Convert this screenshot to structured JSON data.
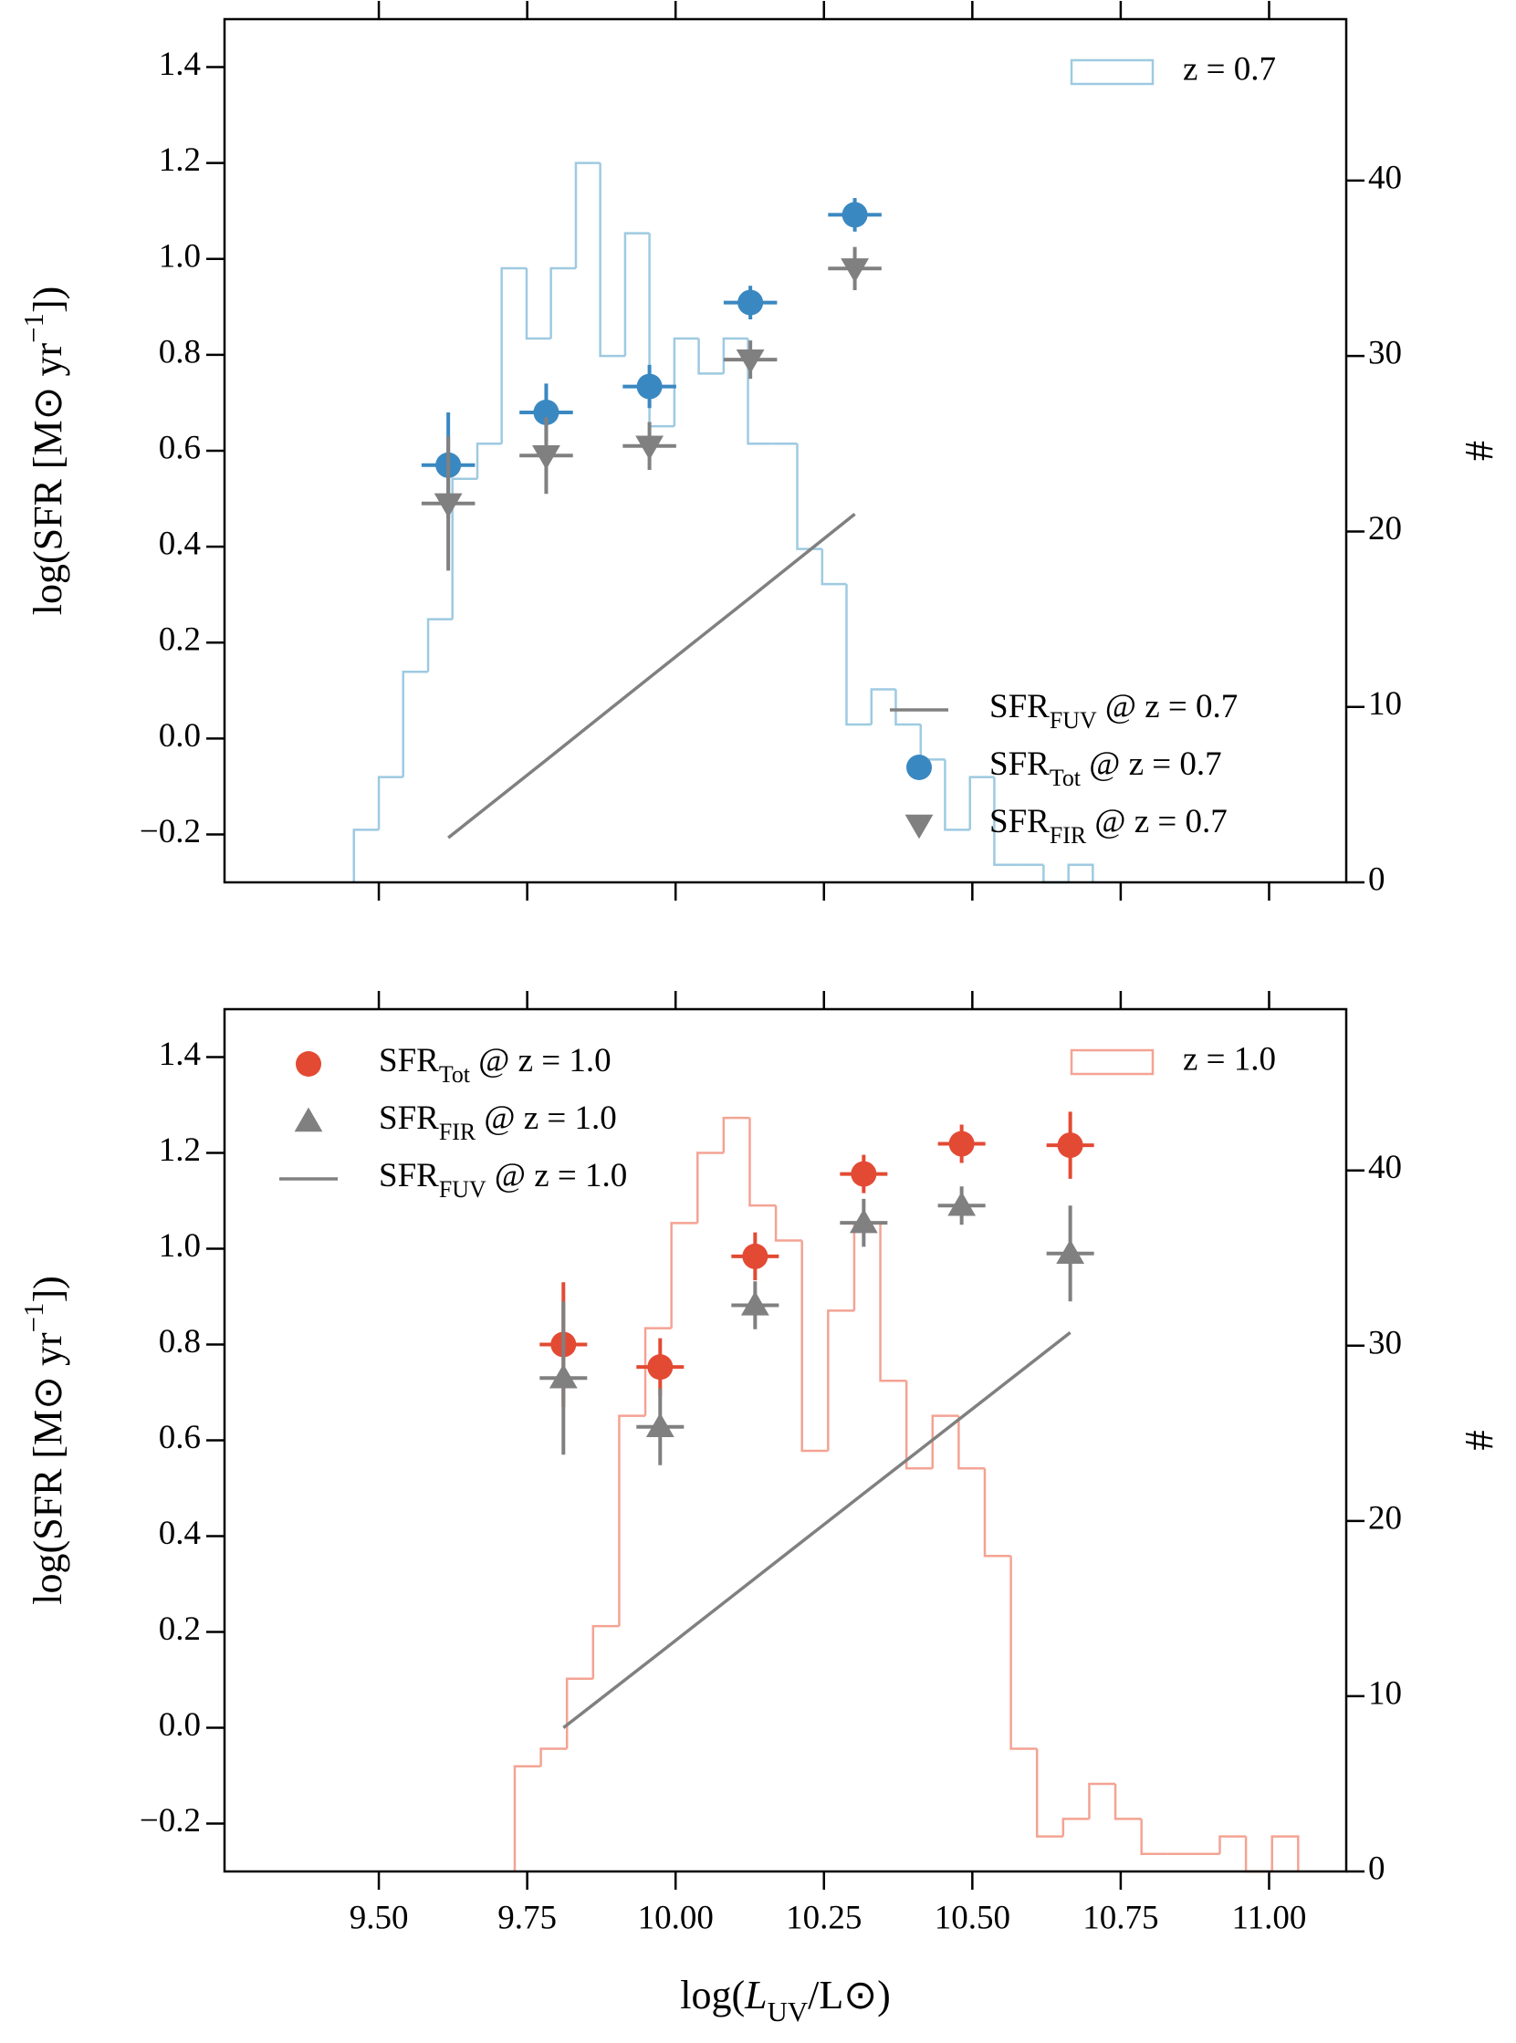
{
  "chart_data": [
    {
      "type": "errorbar",
      "xlim": [
        9.24,
        11.13
      ],
      "ylim": [
        -0.3,
        1.5
      ],
      "y2lim": [
        0,
        49.2
      ],
      "xticks": [
        {
          "value": 9.5,
          "label": "9.50"
        },
        {
          "value": 9.75,
          "label": "9.75"
        },
        {
          "value": 10,
          "label": "10.00"
        },
        {
          "value": 10.25,
          "label": "10.25"
        },
        {
          "value": 10.5,
          "label": "10.50"
        },
        {
          "value": 10.75,
          "label": "10.75"
        },
        {
          "value": 11,
          "label": "11.00"
        }
      ],
      "show_xticklabels": false,
      "yticks": [
        {
          "value": -0.2,
          "label": "−0.2"
        },
        {
          "value": 0.0,
          "label": "0.0"
        },
        0.2,
        0.4,
        0.6,
        0.8,
        {
          "value": 1.0,
          "label": "1.0"
        },
        1.2,
        1.4
      ],
      "y2ticks": [
        0,
        10,
        20,
        30,
        40
      ],
      "ylabel": "log(SFR [M⊙ yr−1])",
      "y2label": "#",
      "legend": "lower right",
      "hist_legend": "upper right",
      "series": [
        {
          "name": "z = 0.7",
          "type": "hist",
          "axis": "y2",
          "color": "#9ecae1",
          "bins": [
            9.458,
            9.5,
            9.541,
            9.583,
            9.624,
            9.666,
            9.707,
            9.749,
            9.79,
            9.832,
            9.873,
            9.915,
            9.956,
            9.998,
            10.039,
            10.081,
            10.122,
            10.164,
            10.205,
            10.247,
            10.288,
            10.33,
            10.371,
            10.413,
            10.454,
            10.496,
            10.537,
            10.579,
            10.62,
            10.662,
            10.703
          ],
          "values": [
            3,
            6,
            12,
            15,
            23,
            25,
            35,
            31,
            35,
            41,
            30,
            37,
            26,
            31,
            29,
            31,
            25,
            25,
            19,
            17,
            9,
            11,
            9,
            7,
            3,
            6,
            1,
            1,
            0,
            1
          ]
        },
        {
          "name": "SFRFUV @ z = 0.7",
          "type": "line",
          "color": "#808080",
          "x": [
            9.617,
            9.782,
            9.956,
            10.126,
            10.302
          ],
          "values": [
            -0.207,
            -0.045,
            0.127,
            0.294,
            0.468
          ]
        },
        {
          "name": "SFRTot @ z = 0.7",
          "type": "errorbar",
          "marker": "o",
          "color": "#3a88c1",
          "x": [
            9.617,
            9.782,
            9.956,
            10.126,
            10.302
          ],
          "values": [
            0.57,
            0.68,
            0.734,
            0.909,
            1.092
          ],
          "xerr": [
            0.045,
            0.045,
            0.045,
            0.045,
            0.045
          ],
          "yerr": [
            0.11,
            0.06,
            0.045,
            0.035,
            0.035
          ]
        },
        {
          "name": "SFRFIR @ z = 0.7",
          "type": "errorbar",
          "marker": "v",
          "color": "#808080",
          "x": [
            9.617,
            9.782,
            9.956,
            10.126,
            10.302
          ],
          "values": [
            0.49,
            0.59,
            0.61,
            0.79,
            0.98
          ],
          "xerr": [
            0.045,
            0.045,
            0.045,
            0.045,
            0.045
          ],
          "yerr": [
            0.14,
            0.08,
            0.05,
            0.04,
            0.045
          ]
        }
      ]
    },
    {
      "type": "errorbar",
      "xlim": [
        9.24,
        11.13
      ],
      "ylim": [
        -0.3,
        1.5
      ],
      "y2lim": [
        0,
        49.2
      ],
      "xticks": [
        {
          "value": 9.5,
          "label": "9.50"
        },
        {
          "value": 9.75,
          "label": "9.75"
        },
        {
          "value": 10,
          "label": "10.00"
        },
        {
          "value": 10.25,
          "label": "10.25"
        },
        {
          "value": 10.5,
          "label": "10.50"
        },
        {
          "value": 10.75,
          "label": "10.75"
        },
        {
          "value": 11,
          "label": "11.00"
        }
      ],
      "show_xticklabels": true,
      "yticks": [
        {
          "value": -0.2,
          "label": "−0.2"
        },
        {
          "value": 0.0,
          "label": "0.0"
        },
        0.2,
        0.4,
        0.6,
        0.8,
        {
          "value": 1.0,
          "label": "1.0"
        },
        1.2,
        1.4
      ],
      "y2ticks": [
        0,
        10,
        20,
        30,
        40
      ],
      "xlabel": "log(LUV/L⊙)",
      "ylabel": "log(SFR [M⊙ yr−1])",
      "y2label": "#",
      "legend": "upper left",
      "hist_legend": "upper right",
      "series": [
        {
          "name": "z = 1.0",
          "type": "hist",
          "axis": "y2",
          "color": "#f4a393",
          "bins": [
            9.729,
            9.773,
            9.817,
            9.861,
            9.905,
            9.949,
            9.993,
            10.037,
            10.081,
            10.125,
            10.169,
            10.213,
            10.257,
            10.301,
            10.345,
            10.389,
            10.433,
            10.477,
            10.521,
            10.565,
            10.609,
            10.653,
            10.697,
            10.741,
            10.785,
            10.829,
            10.873,
            10.917,
            10.961,
            11.005,
            11.049
          ],
          "values": [
            6,
            7,
            11,
            14,
            26,
            31,
            37,
            41,
            43,
            38,
            36,
            24,
            32,
            37,
            28,
            23,
            26,
            23,
            18,
            7,
            2,
            3,
            5,
            3,
            1,
            1,
            1,
            2,
            0,
            2
          ]
        },
        {
          "name": "SFRTot @ z = 1.0",
          "type": "errorbar",
          "marker": "o",
          "color": "#e34a33",
          "x": [
            9.811,
            9.974,
            10.134,
            10.317,
            10.482,
            10.665
          ],
          "values": [
            0.8,
            0.753,
            0.984,
            1.156,
            1.219,
            1.216
          ],
          "xerr": [
            0.04,
            0.04,
            0.04,
            0.04,
            0.04,
            0.04
          ],
          "yerr": [
            0.13,
            0.06,
            0.05,
            0.04,
            0.04,
            0.07
          ]
        },
        {
          "name": "SFRFIR @ z = 1.0",
          "type": "errorbar",
          "marker": "^",
          "color": "#808080",
          "x": [
            9.811,
            9.974,
            10.134,
            10.317,
            10.482,
            10.665
          ],
          "values": [
            0.73,
            0.628,
            0.882,
            1.054,
            1.09,
            0.99
          ],
          "xerr": [
            0.04,
            0.04,
            0.04,
            0.04,
            0.04,
            0.04
          ],
          "yerr": [
            0.16,
            0.08,
            0.05,
            0.05,
            0.04,
            0.1
          ]
        },
        {
          "name": "SFRFUV @ z = 1.0",
          "type": "line",
          "color": "#808080",
          "x": [
            9.811,
            9.974,
            10.134,
            10.317,
            10.482,
            10.665
          ],
          "values": [
            0.0,
            0.157,
            0.312,
            0.489,
            0.648,
            0.825
          ]
        }
      ]
    }
  ]
}
